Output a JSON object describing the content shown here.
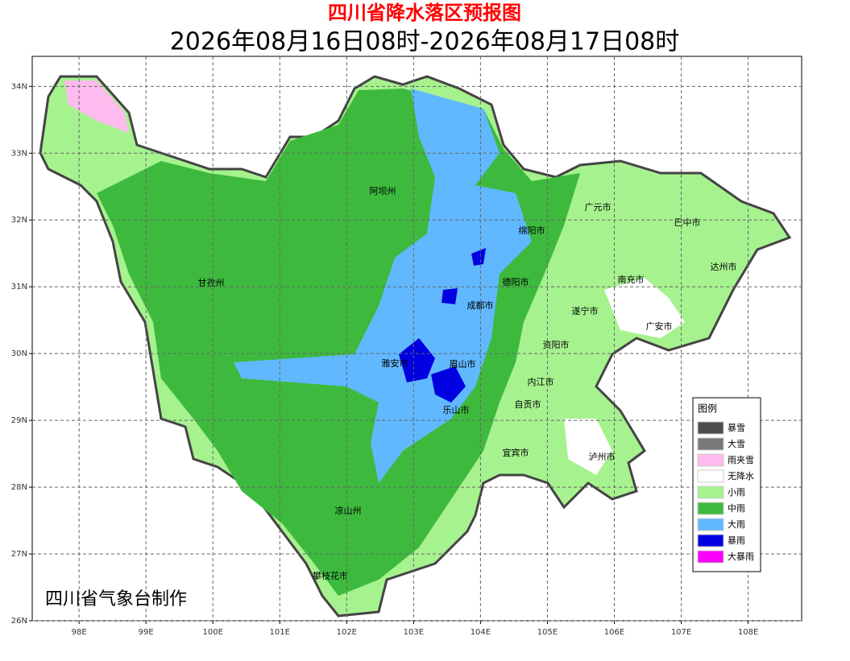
{
  "map": {
    "title": "四川省降水落区预报图",
    "subtitle": "2026年08月16日08时-2026年08月17日08时",
    "xlim": [
      97.3,
      108.8
    ],
    "ylim": [
      26,
      34.45
    ],
    "xticks": [
      {
        "value": 98,
        "label": "98E"
      },
      {
        "value": 99,
        "label": "99E"
      },
      {
        "value": 100,
        "label": "100E"
      },
      {
        "value": 101,
        "label": "101E"
      },
      {
        "value": 102,
        "label": "102E"
      },
      {
        "value": 103,
        "label": "103E"
      },
      {
        "value": 104,
        "label": "104E"
      },
      {
        "value": 105,
        "label": "105E"
      },
      {
        "value": 106,
        "label": "106E"
      },
      {
        "value": 107,
        "label": "107E"
      },
      {
        "value": 108,
        "label": "108E"
      }
    ],
    "yticks": [
      {
        "value": 26,
        "label": "26N"
      },
      {
        "value": 27,
        "label": "27N"
      },
      {
        "value": 28,
        "label": "28N"
      },
      {
        "value": 29,
        "label": "29N"
      },
      {
        "value": 30,
        "label": "30N"
      },
      {
        "value": 31,
        "label": "31N"
      },
      {
        "value": 32,
        "label": "32N"
      },
      {
        "value": 33,
        "label": "33N"
      },
      {
        "value": 34,
        "label": "34N"
      }
    ],
    "grid": true,
    "cities": [
      "阿坝州",
      "甘孜州",
      "绵阳市",
      "广元市",
      "巴中市",
      "达州市",
      "南充市",
      "德阳市",
      "成都市",
      "遂宁市",
      "广安市",
      "资阳市",
      "雅安市",
      "眉山市",
      "内江市",
      "自贡市",
      "乐山市",
      "宜宾市",
      "泸州市",
      "凉山州",
      "攀枝花市"
    ],
    "legend": {
      "title": "图例",
      "items": [
        {
          "label": "暴雪",
          "color": "#4d4d4d"
        },
        {
          "label": "大雪",
          "color": "#787878"
        },
        {
          "label": "雨夹雪",
          "color": "#ffbbee"
        },
        {
          "label": "无降水",
          "color": "#ffffff"
        },
        {
          "label": "小雨",
          "color": "#a6f28f"
        },
        {
          "label": "中雨",
          "color": "#3dba3d"
        },
        {
          "label": "大雨",
          "color": "#61b8ff"
        },
        {
          "label": "暴雨",
          "color": "#0000e1"
        },
        {
          "label": "大暴雨",
          "color": "#fa00fa"
        }
      ]
    },
    "credit": "四川省气象台制作"
  }
}
